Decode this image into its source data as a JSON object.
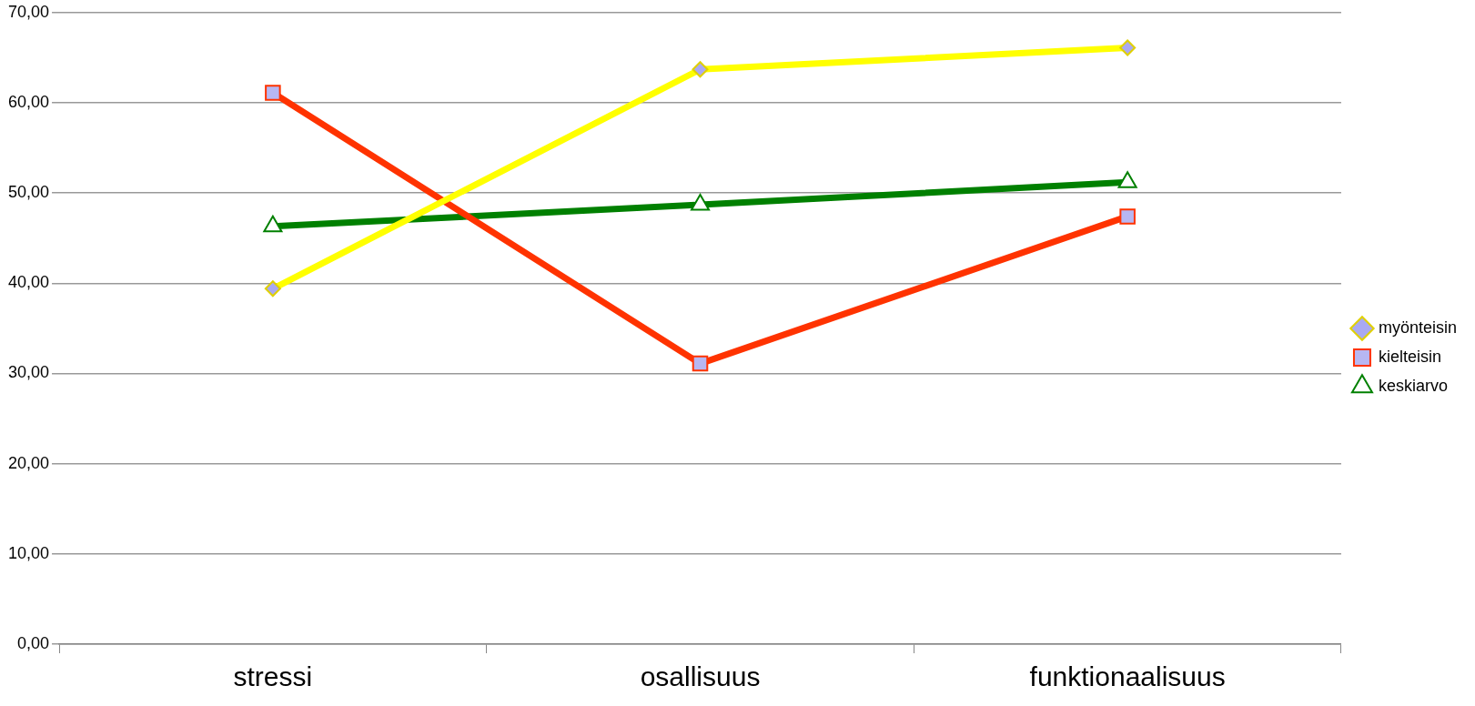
{
  "chart_data": {
    "type": "line",
    "categories": [
      "stressi",
      "osallisuus",
      "funktionaalisuus"
    ],
    "series": [
      {
        "name": "myönteisin",
        "color": "#ffff00",
        "marker": "diamond",
        "values": [
          39.4,
          63.7,
          66.1
        ]
      },
      {
        "name": "kielteisin",
        "color": "#ff3300",
        "marker": "square",
        "values": [
          61.1,
          31.1,
          47.4
        ]
      },
      {
        "name": "keskiarvo",
        "color": "#008000",
        "marker": "triangle",
        "values": [
          46.3,
          48.7,
          51.2
        ]
      }
    ],
    "ylim": [
      0,
      70
    ],
    "yticks": [
      {
        "value": 0,
        "label": "0,00"
      },
      {
        "value": 10,
        "label": "10,00"
      },
      {
        "value": 20,
        "label": "20,00"
      },
      {
        "value": 30,
        "label": "30,00"
      },
      {
        "value": 40,
        "label": "40,00"
      },
      {
        "value": 50,
        "label": "50,00"
      },
      {
        "value": 60,
        "label": "60,00"
      },
      {
        "value": 70,
        "label": "70,00"
      }
    ],
    "grid": "y",
    "legend": "right",
    "line_style": "solid"
  }
}
